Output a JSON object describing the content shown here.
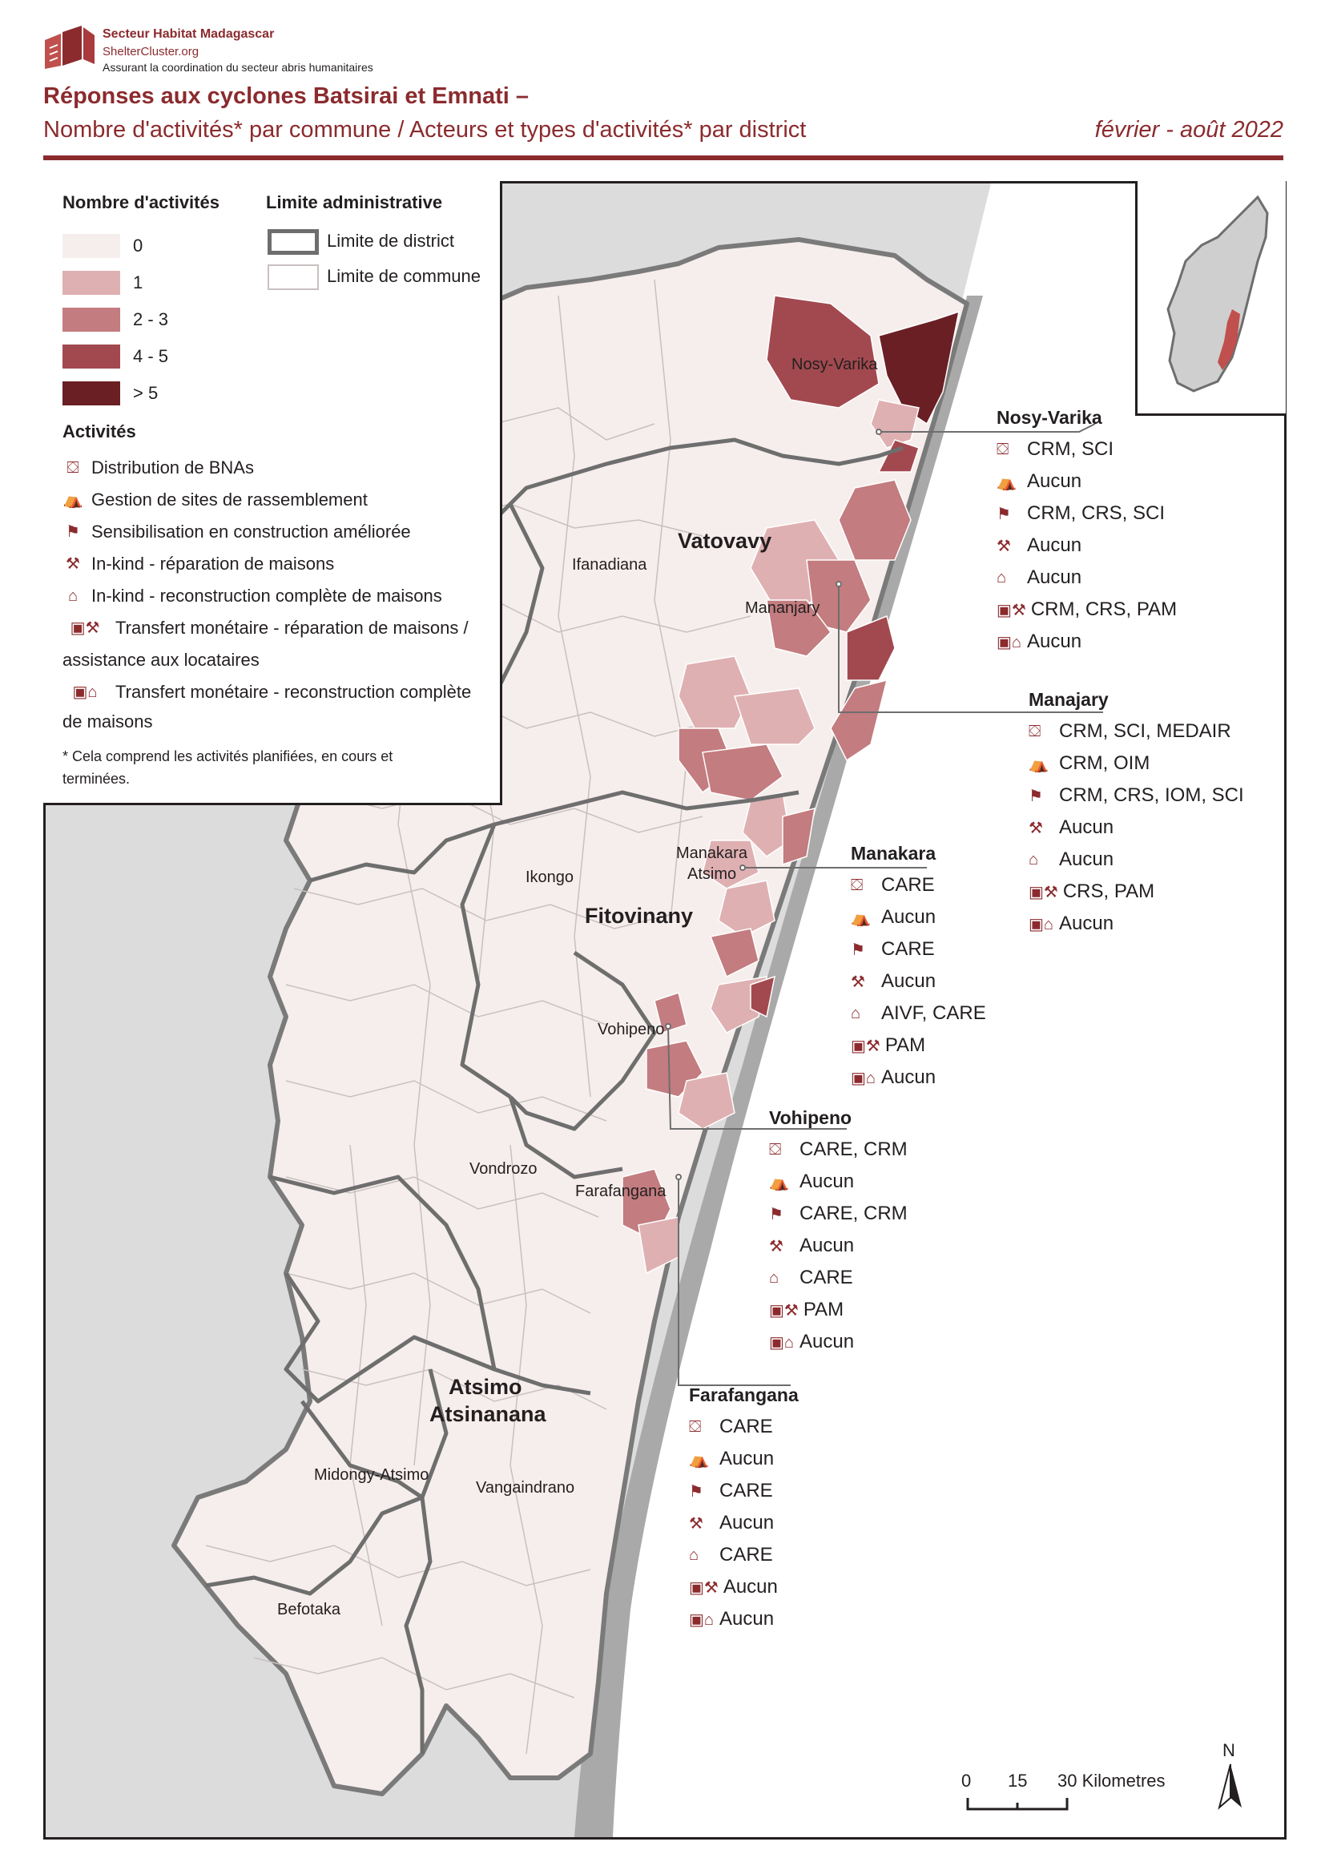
{
  "header": {
    "org_name": "Secteur Habitat Madagascar",
    "org_site": "ShelterCluster.org",
    "org_tagline": "Assurant la coordination du secteur abris humanitaires",
    "title_line1": "Réponses aux cyclones Batsirai et Emnati –",
    "title_line2": "Nombre d'activités* par commune / Acteurs et types d'activités* par district",
    "period": "février - août 2022"
  },
  "legend": {
    "count_title": "Nombre d'activités",
    "count_classes": [
      {
        "label": "0",
        "color": "#f6eeec"
      },
      {
        "label": "1",
        "color": "#dfb0b2"
      },
      {
        "label": "2 - 3",
        "color": "#c37c7f"
      },
      {
        "label": "4 - 5",
        "color": "#a2494f"
      },
      {
        "label": "> 5",
        "color": "#6a1f25"
      }
    ],
    "boundary_title": "Limite administrative",
    "district_boundary": "Limite de district",
    "commune_boundary": "Limite de commune",
    "activities_title": "Activités",
    "activities": [
      {
        "icon": "nfi-box-icon",
        "glyph": "⛋",
        "label": "Distribution de BNAs"
      },
      {
        "icon": "site-tent-icon",
        "glyph": "⛺",
        "label": "Gestion de sites de rassemblement"
      },
      {
        "icon": "training-board-icon",
        "glyph": "⚑",
        "label": "Sensibilisation en construction améliorée"
      },
      {
        "icon": "repair-house-icon",
        "glyph": "⚒",
        "label": "In-kind - réparation de maisons"
      },
      {
        "icon": "house-icon",
        "glyph": "⌂",
        "label": "In-kind - reconstruction complète de maisons"
      },
      {
        "icon": "cash-repair-icon",
        "glyph": "▣⚒",
        "label": "Transfert monétaire - réparation de maisons /"
      },
      {
        "icon": "cash-house-icon",
        "glyph": "▣⌂",
        "label": "Transfert monétaire - reconstruction complète"
      }
    ],
    "activity5_cont": "assistance aux locataires",
    "activity6_cont": "de maisons",
    "footnote1": "* Cela comprend les activités planifiées, en cours et",
    "footnote2": "terminées."
  },
  "map": {
    "districts": [
      "Vatovavy",
      "Fitovinany",
      "Atsimo",
      "Atsinanana"
    ],
    "places": [
      "Nosy-Varika",
      "Ifanadiana",
      "Mananjary",
      "Manakara",
      "Atsimo",
      "Ikongo",
      "Vohipeno",
      "Vondrozo",
      "Farafangana",
      "Midongy-Atsimo",
      "Vangaindrano",
      "Befotaka"
    ],
    "scale": {
      "t0": "0",
      "t15": "15",
      "t30": "30 Kilometres"
    },
    "north": "N",
    "colors": {
      "land": "#f6eeec",
      "sea_shadow": "#a9a9a9",
      "outline": "#6e6e6e"
    }
  },
  "callouts": [
    {
      "name": "Nosy-Varika",
      "rows": [
        {
          "icon": "nfi-box-icon",
          "glyph": "⛋",
          "text": "CRM, SCI"
        },
        {
          "icon": "site-tent-icon",
          "glyph": "⛺",
          "text": "Aucun"
        },
        {
          "icon": "training-board-icon",
          "glyph": "⚑",
          "text": "CRM, CRS, SCI"
        },
        {
          "icon": "repair-house-icon",
          "glyph": "⚒",
          "text": "Aucun"
        },
        {
          "icon": "house-icon",
          "glyph": "⌂",
          "text": "Aucun"
        },
        {
          "icon": "cash-repair-icon",
          "glyph": "▣⚒",
          "text": "CRM, CRS, PAM"
        },
        {
          "icon": "cash-house-icon",
          "glyph": "▣⌂",
          "text": "Aucun"
        }
      ]
    },
    {
      "name": "Manajary",
      "rows": [
        {
          "icon": "nfi-box-icon",
          "glyph": "⛋",
          "text": "CRM, SCI, MEDAIR"
        },
        {
          "icon": "site-tent-icon",
          "glyph": "⛺",
          "text": "CRM, OIM"
        },
        {
          "icon": "training-board-icon",
          "glyph": "⚑",
          "text": "CRM, CRS, IOM, SCI"
        },
        {
          "icon": "repair-house-icon",
          "glyph": "⚒",
          "text": "Aucun"
        },
        {
          "icon": "house-icon",
          "glyph": "⌂",
          "text": "Aucun"
        },
        {
          "icon": "cash-repair-icon",
          "glyph": "▣⚒",
          "text": "CRS, PAM"
        },
        {
          "icon": "cash-house-icon",
          "glyph": "▣⌂",
          "text": "Aucun"
        }
      ]
    },
    {
      "name": "Manakara",
      "rows": [
        {
          "icon": "nfi-box-icon",
          "glyph": "⛋",
          "text": "CARE"
        },
        {
          "icon": "site-tent-icon",
          "glyph": "⛺",
          "text": "Aucun"
        },
        {
          "icon": "training-board-icon",
          "glyph": "⚑",
          "text": "CARE"
        },
        {
          "icon": "repair-house-icon",
          "glyph": "⚒",
          "text": "Aucun"
        },
        {
          "icon": "house-icon",
          "glyph": "⌂",
          "text": "AIVF, CARE"
        },
        {
          "icon": "cash-repair-icon",
          "glyph": "▣⚒",
          "text": "PAM"
        },
        {
          "icon": "cash-house-icon",
          "glyph": "▣⌂",
          "text": "Aucun"
        }
      ]
    },
    {
      "name": "Vohipeno",
      "rows": [
        {
          "icon": "nfi-box-icon",
          "glyph": "⛋",
          "text": "CARE, CRM"
        },
        {
          "icon": "site-tent-icon",
          "glyph": "⛺",
          "text": "Aucun"
        },
        {
          "icon": "training-board-icon",
          "glyph": "⚑",
          "text": "CARE, CRM"
        },
        {
          "icon": "repair-house-icon",
          "glyph": "⚒",
          "text": "Aucun"
        },
        {
          "icon": "house-icon",
          "glyph": "⌂",
          "text": "CARE"
        },
        {
          "icon": "cash-repair-icon",
          "glyph": "▣⚒",
          "text": "PAM"
        },
        {
          "icon": "cash-house-icon",
          "glyph": "▣⌂",
          "text": "Aucun"
        }
      ]
    },
    {
      "name": "Farafangana",
      "rows": [
        {
          "icon": "nfi-box-icon",
          "glyph": "⛋",
          "text": "CARE"
        },
        {
          "icon": "site-tent-icon",
          "glyph": "⛺",
          "text": "Aucun"
        },
        {
          "icon": "training-board-icon",
          "glyph": "⚑",
          "text": "CARE"
        },
        {
          "icon": "repair-house-icon",
          "glyph": "⚒",
          "text": "Aucun"
        },
        {
          "icon": "house-icon",
          "glyph": "⌂",
          "text": "CARE"
        },
        {
          "icon": "cash-repair-icon",
          "glyph": "▣⚒",
          "text": "Aucun"
        },
        {
          "icon": "cash-house-icon",
          "glyph": "▣⌂",
          "text": "Aucun"
        }
      ]
    }
  ]
}
